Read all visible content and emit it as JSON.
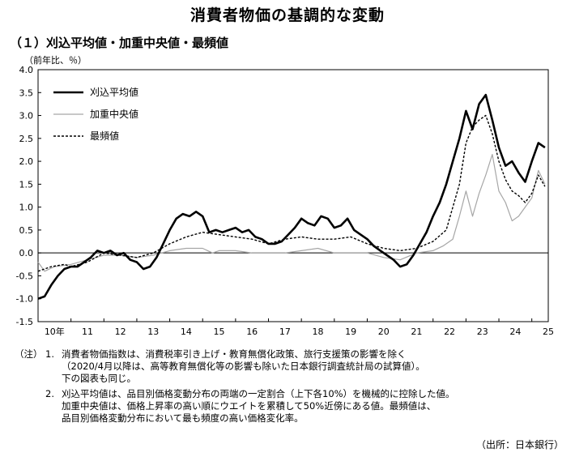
{
  "title": "消費者物価の基調的な変動",
  "subtitle": "（１）刈込平均値・加重中央値・最頻値",
  "unit_label": "（前年比、％）",
  "notes": {
    "label": "（注）",
    "items": [
      {
        "num": "1.",
        "lines": [
          "消費者物価指数は、消費税率引き上げ・教育無償化政策、旅行支援策の影響を除く",
          "（2020/4月以降は、高等教育無償化等の影響も除いた日本銀行調査統計局の試算値）。",
          "下の図表も同じ。"
        ]
      },
      {
        "num": "2.",
        "lines": [
          "刈込平均値は、品目別価格変動分布の両端の一定割合（上下各10%）を機械的に控除した値。",
          "加重中央値は、価格上昇率の高い順にウエイトを累積して50%近傍にある値。最頻値は、",
          "品目別価格変動分布において最も頻度の高い価格変化率。"
        ]
      }
    ]
  },
  "source": "（出所：日本銀行）",
  "chart_data": {
    "type": "line",
    "xlabel": "",
    "ylabel": "",
    "x_tick_labels": [
      "10年",
      "11",
      "12",
      "13",
      "14",
      "15",
      "16",
      "17",
      "18",
      "19",
      "20",
      "21",
      "22",
      "23",
      "24",
      "25"
    ],
    "y_tick_labels": [
      "4.0",
      "3.5",
      "3.0",
      "2.5",
      "2.0",
      "1.5",
      "1.0",
      "0.5",
      "0.0",
      "-0.5",
      "-1.0",
      "-1.5"
    ],
    "ylim": [
      -1.5,
      4.0
    ],
    "xlim": [
      2010.0,
      2025.5
    ],
    "grid": false,
    "legend_position": "top-left",
    "series": [
      {
        "name": "刈込平均値",
        "style": "solid-thick",
        "color": "#000000",
        "points": [
          [
            2010.0,
            -1.0
          ],
          [
            2010.2,
            -0.95
          ],
          [
            2010.4,
            -0.7
          ],
          [
            2010.6,
            -0.5
          ],
          [
            2010.8,
            -0.35
          ],
          [
            2011.0,
            -0.3
          ],
          [
            2011.2,
            -0.3
          ],
          [
            2011.4,
            -0.2
          ],
          [
            2011.6,
            -0.1
          ],
          [
            2011.8,
            0.05
          ],
          [
            2012.0,
            0.0
          ],
          [
            2012.2,
            0.05
          ],
          [
            2012.4,
            -0.05
          ],
          [
            2012.6,
            0.0
          ],
          [
            2012.8,
            -0.15
          ],
          [
            2013.0,
            -0.2
          ],
          [
            2013.2,
            -0.35
          ],
          [
            2013.4,
            -0.3
          ],
          [
            2013.6,
            -0.1
          ],
          [
            2013.8,
            0.2
          ],
          [
            2014.0,
            0.5
          ],
          [
            2014.2,
            0.75
          ],
          [
            2014.4,
            0.85
          ],
          [
            2014.6,
            0.8
          ],
          [
            2014.8,
            0.9
          ],
          [
            2015.0,
            0.8
          ],
          [
            2015.2,
            0.45
          ],
          [
            2015.4,
            0.5
          ],
          [
            2015.6,
            0.45
          ],
          [
            2015.8,
            0.5
          ],
          [
            2016.0,
            0.55
          ],
          [
            2016.2,
            0.45
          ],
          [
            2016.4,
            0.5
          ],
          [
            2016.6,
            0.35
          ],
          [
            2016.8,
            0.3
          ],
          [
            2017.0,
            0.2
          ],
          [
            2017.2,
            0.2
          ],
          [
            2017.4,
            0.25
          ],
          [
            2017.6,
            0.4
          ],
          [
            2017.8,
            0.55
          ],
          [
            2018.0,
            0.75
          ],
          [
            2018.2,
            0.65
          ],
          [
            2018.4,
            0.6
          ],
          [
            2018.6,
            0.8
          ],
          [
            2018.8,
            0.75
          ],
          [
            2019.0,
            0.55
          ],
          [
            2019.2,
            0.6
          ],
          [
            2019.4,
            0.75
          ],
          [
            2019.6,
            0.5
          ],
          [
            2019.8,
            0.4
          ],
          [
            2020.0,
            0.3
          ],
          [
            2020.2,
            0.15
          ],
          [
            2020.4,
            0.05
          ],
          [
            2020.6,
            -0.05
          ],
          [
            2020.8,
            -0.15
          ],
          [
            2021.0,
            -0.3
          ],
          [
            2021.2,
            -0.25
          ],
          [
            2021.4,
            -0.05
          ],
          [
            2021.6,
            0.2
          ],
          [
            2021.8,
            0.45
          ],
          [
            2022.0,
            0.8
          ],
          [
            2022.2,
            1.1
          ],
          [
            2022.4,
            1.5
          ],
          [
            2022.6,
            2.0
          ],
          [
            2022.8,
            2.5
          ],
          [
            2023.0,
            3.1
          ],
          [
            2023.2,
            2.7
          ],
          [
            2023.4,
            3.25
          ],
          [
            2023.6,
            3.45
          ],
          [
            2023.8,
            2.9
          ],
          [
            2024.0,
            2.3
          ],
          [
            2024.2,
            1.9
          ],
          [
            2024.4,
            2.0
          ],
          [
            2024.6,
            1.75
          ],
          [
            2024.8,
            1.55
          ],
          [
            2025.0,
            2.0
          ],
          [
            2025.2,
            2.4
          ],
          [
            2025.4,
            2.3
          ]
        ]
      },
      {
        "name": "加重中央値",
        "style": "solid-thin",
        "color": "#a6a6a6",
        "points": [
          [
            2010.0,
            -0.2
          ],
          [
            2010.2,
            -0.4
          ],
          [
            2010.5,
            -0.3
          ],
          [
            2011.0,
            -0.25
          ],
          [
            2011.5,
            -0.15
          ],
          [
            2012.0,
            -0.05
          ],
          [
            2012.5,
            -0.05
          ],
          [
            2013.0,
            -0.1
          ],
          [
            2013.5,
            -0.05
          ],
          [
            2014.0,
            0.05
          ],
          [
            2014.5,
            0.1
          ],
          [
            2015.0,
            0.1
          ],
          [
            2015.3,
            0.0
          ],
          [
            2015.5,
            0.05
          ],
          [
            2016.0,
            0.05
          ],
          [
            2016.5,
            0.0
          ],
          [
            2017.0,
            0.0
          ],
          [
            2017.5,
            0.0
          ],
          [
            2018.0,
            0.05
          ],
          [
            2018.5,
            0.1
          ],
          [
            2019.0,
            0.0
          ],
          [
            2019.5,
            0.0
          ],
          [
            2020.0,
            0.0
          ],
          [
            2020.5,
            -0.1
          ],
          [
            2021.0,
            -0.15
          ],
          [
            2021.5,
            0.0
          ],
          [
            2022.0,
            0.05
          ],
          [
            2022.3,
            0.15
          ],
          [
            2022.6,
            0.3
          ],
          [
            2022.8,
            0.8
          ],
          [
            2023.0,
            1.35
          ],
          [
            2023.2,
            0.8
          ],
          [
            2023.4,
            1.3
          ],
          [
            2023.6,
            1.7
          ],
          [
            2023.8,
            2.15
          ],
          [
            2024.0,
            1.35
          ],
          [
            2024.2,
            1.1
          ],
          [
            2024.4,
            0.7
          ],
          [
            2024.6,
            0.8
          ],
          [
            2024.8,
            1.0
          ],
          [
            2025.0,
            1.2
          ],
          [
            2025.2,
            1.8
          ],
          [
            2025.4,
            1.5
          ]
        ]
      },
      {
        "name": "最頻値",
        "style": "dashed",
        "color": "#000000",
        "points": [
          [
            2010.0,
            -0.4
          ],
          [
            2010.4,
            -0.3
          ],
          [
            2010.8,
            -0.25
          ],
          [
            2011.0,
            -0.3
          ],
          [
            2011.5,
            -0.2
          ],
          [
            2012.0,
            0.0
          ],
          [
            2012.5,
            -0.05
          ],
          [
            2013.0,
            -0.1
          ],
          [
            2013.5,
            0.0
          ],
          [
            2014.0,
            0.2
          ],
          [
            2014.5,
            0.35
          ],
          [
            2015.0,
            0.45
          ],
          [
            2015.5,
            0.4
          ],
          [
            2016.0,
            0.35
          ],
          [
            2016.5,
            0.3
          ],
          [
            2017.0,
            0.2
          ],
          [
            2017.5,
            0.3
          ],
          [
            2018.0,
            0.35
          ],
          [
            2018.5,
            0.3
          ],
          [
            2019.0,
            0.3
          ],
          [
            2019.5,
            0.35
          ],
          [
            2020.0,
            0.2
          ],
          [
            2020.5,
            0.1
          ],
          [
            2021.0,
            0.05
          ],
          [
            2021.5,
            0.1
          ],
          [
            2022.0,
            0.25
          ],
          [
            2022.4,
            0.5
          ],
          [
            2022.8,
            1.5
          ],
          [
            2023.0,
            2.4
          ],
          [
            2023.2,
            2.75
          ],
          [
            2023.4,
            2.9
          ],
          [
            2023.6,
            3.0
          ],
          [
            2023.8,
            2.6
          ],
          [
            2024.0,
            2.0
          ],
          [
            2024.2,
            1.6
          ],
          [
            2024.4,
            1.35
          ],
          [
            2024.6,
            1.25
          ],
          [
            2024.8,
            1.1
          ],
          [
            2025.0,
            1.3
          ],
          [
            2025.2,
            1.7
          ],
          [
            2025.4,
            1.45
          ]
        ]
      }
    ]
  }
}
